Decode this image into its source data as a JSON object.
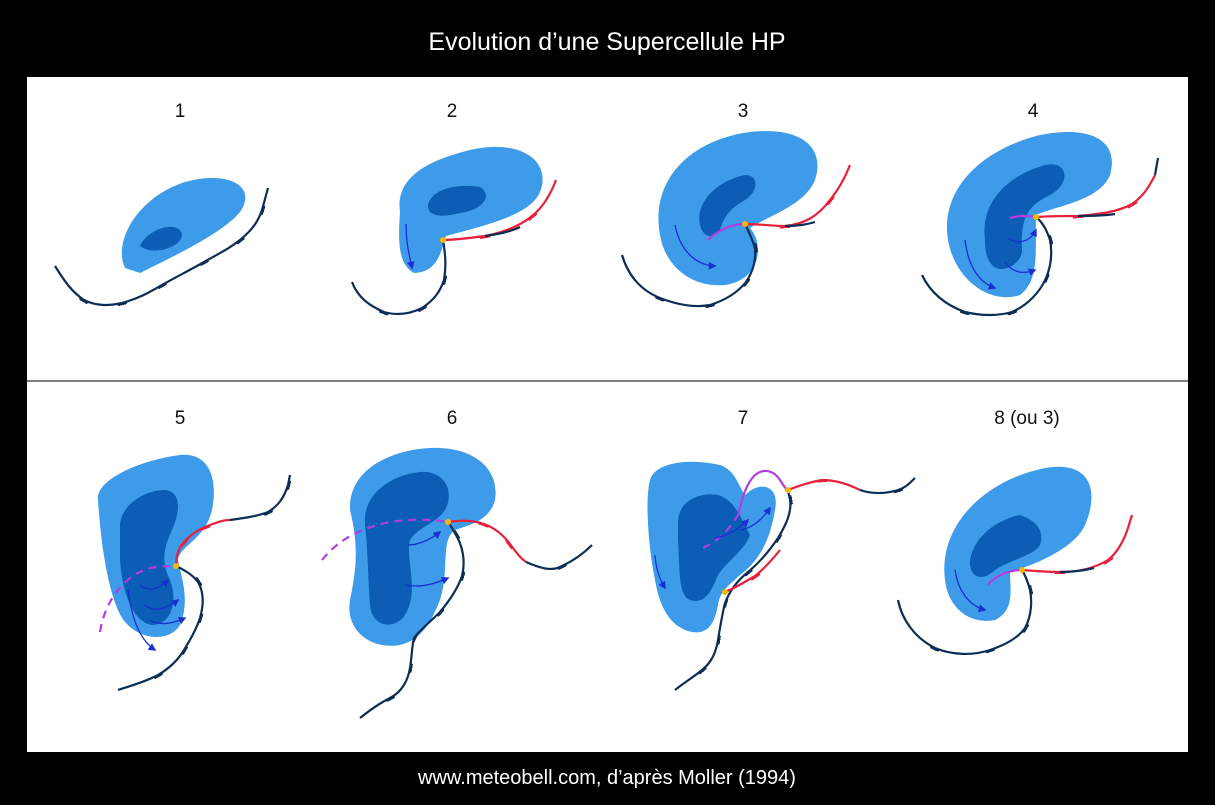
{
  "title": "Evolution d’une Supercellule HP",
  "panels": [
    {
      "label": "1"
    },
    {
      "label": "2"
    },
    {
      "label": "3"
    },
    {
      "label": "4"
    },
    {
      "label": "5"
    },
    {
      "label": "6"
    },
    {
      "label": "7"
    },
    {
      "label": "8 (ou 3)"
    }
  ],
  "footer": "www.meteobell.com, d’après Moller (1994)"
}
